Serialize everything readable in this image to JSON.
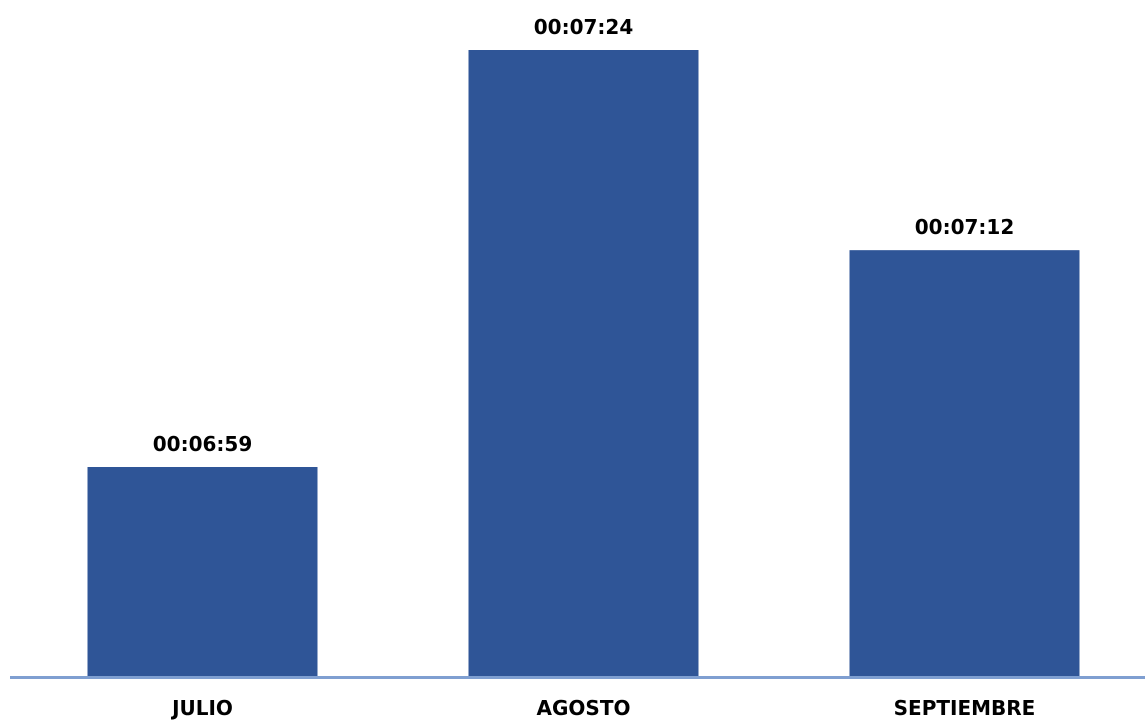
{
  "chart_data": {
    "type": "bar",
    "categories": [
      "JULIO",
      "AGOSTO",
      "SEPTIEMBRE"
    ],
    "values": [
      419,
      444,
      432
    ],
    "value_labels": [
      "00:06:59",
      "00:07:24",
      "00:07:12"
    ],
    "value_unit": "seconds",
    "title": "",
    "xlabel": "",
    "ylabel": "",
    "grid": false,
    "legend": "none",
    "colors": {
      "bar": "#2f5597",
      "axis": "#7f9fd1",
      "text": "#000000"
    }
  }
}
